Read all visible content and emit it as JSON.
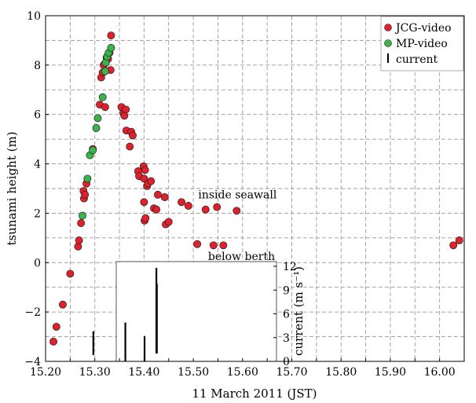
{
  "chart_data": [
    {
      "type": "scatter",
      "xlabel": "11 March 2011 (JST)",
      "ylabel": "tsunami height (m)",
      "xlim": [
        15.2,
        16.05
      ],
      "ylim": [
        -4,
        10
      ],
      "xticks": [
        "15.20",
        "15.25",
        "15.30",
        "15.35",
        "15.40",
        "15.45",
        "15.50",
        "15.55",
        "15.60",
        "15.65",
        "15.70",
        "15.75",
        "15.80",
        "15.85",
        "15.90",
        "15.95",
        "16.00",
        "16.05"
      ],
      "yticks": [
        "−4",
        "−2",
        "0",
        "2",
        "4",
        "6",
        "8",
        "10"
      ],
      "grid": true,
      "legend_position": "top-right",
      "series": [
        {
          "name": "JCG-video",
          "color": "#e0202a",
          "points": [
            [
              15.216,
              -3.2
            ],
            [
              15.222,
              -2.6
            ],
            [
              15.235,
              -1.7
            ],
            [
              15.25,
              -0.45
            ],
            [
              15.266,
              0.65
            ],
            [
              15.268,
              0.9
            ],
            [
              15.272,
              1.6
            ],
            [
              15.277,
              2.9
            ],
            [
              15.278,
              2.6
            ],
            [
              15.28,
              2.75
            ],
            [
              15.283,
              3.2
            ],
            [
              15.296,
              4.6
            ],
            [
              15.31,
              6.4
            ],
            [
              15.313,
              7.5
            ],
            [
              15.316,
              7.7
            ],
            [
              15.318,
              8.0
            ],
            [
              15.321,
              6.3
            ],
            [
              15.322,
              8.1
            ],
            [
              15.324,
              8.3
            ],
            [
              15.327,
              8.25
            ],
            [
              15.33,
              8.5
            ],
            [
              15.332,
              7.8
            ],
            [
              15.333,
              9.2
            ],
            [
              15.354,
              6.3
            ],
            [
              15.358,
              6.05
            ],
            [
              15.36,
              5.95
            ],
            [
              15.363,
              6.2
            ],
            [
              15.364,
              5.35
            ],
            [
              15.371,
              4.7
            ],
            [
              15.374,
              5.3
            ],
            [
              15.377,
              5.15
            ],
            [
              15.388,
              3.7
            ],
            [
              15.39,
              3.5
            ],
            [
              15.399,
              3.9
            ],
            [
              15.4,
              2.45
            ],
            [
              15.4,
              3.4
            ],
            [
              15.401,
              1.7
            ],
            [
              15.402,
              3.75
            ],
            [
              15.403,
              1.8
            ],
            [
              15.406,
              3.1
            ],
            [
              15.408,
              3.2
            ],
            [
              15.414,
              3.3
            ],
            [
              15.42,
              2.2
            ],
            [
              15.425,
              2.15
            ],
            [
              15.428,
              2.75
            ],
            [
              15.442,
              2.65
            ],
            [
              15.444,
              1.55
            ],
            [
              15.45,
              1.65
            ],
            [
              15.476,
              2.45
            ],
            [
              15.49,
              2.3
            ],
            [
              15.508,
              0.75
            ],
            [
              15.525,
              2.15
            ],
            [
              15.541,
              0.7
            ],
            [
              15.548,
              2.25
            ],
            [
              15.561,
              0.7
            ],
            [
              15.588,
              2.1
            ],
            [
              16.028,
              0.7
            ],
            [
              16.04,
              0.9
            ]
          ]
        },
        {
          "name": "MP-video",
          "color": "#39b54a",
          "points": [
            [
              15.275,
              1.9
            ],
            [
              15.285,
              3.4
            ],
            [
              15.29,
              4.35
            ],
            [
              15.296,
              4.55
            ],
            [
              15.303,
              5.45
            ],
            [
              15.306,
              5.85
            ],
            [
              15.316,
              6.7
            ],
            [
              15.321,
              7.75
            ],
            [
              15.322,
              8.1
            ],
            [
              15.325,
              8.35
            ],
            [
              15.328,
              8.5
            ],
            [
              15.333,
              8.7
            ]
          ]
        }
      ],
      "annotations": [
        {
          "text": "inside seawall",
          "x": 15.51,
          "y": 2.6
        },
        {
          "text": "below berth",
          "x": 15.53,
          "y": 0.1
        }
      ]
    },
    {
      "type": "bar",
      "legend": "current",
      "ylabel": "current (m s⁻¹)",
      "ylim": [
        0,
        12
      ],
      "yticks": [
        "0",
        "3",
        "6",
        "9",
        "12"
      ],
      "xlim": [
        15.2,
        16.05
      ],
      "bars": [
        {
          "x": 15.297,
          "low": 0.8,
          "high": 3.8
        },
        {
          "x": 15.362,
          "low": 0.0,
          "high": 4.9
        },
        {
          "x": 15.401,
          "low": 0.0,
          "high": 3.2
        },
        {
          "x": 15.425,
          "low": 1.0,
          "high": 11.8
        },
        {
          "x": 15.426,
          "low": 1.0,
          "high": 9.8
        }
      ]
    }
  ]
}
